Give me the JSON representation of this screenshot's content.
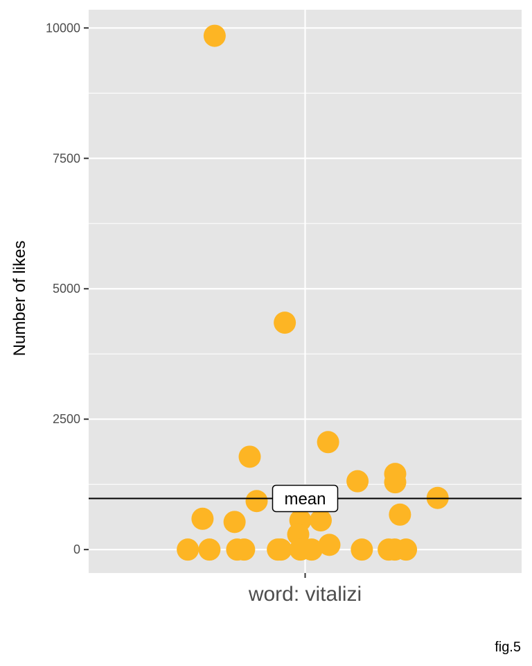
{
  "chart_data": {
    "type": "scatter",
    "title": "",
    "xlabel": "",
    "ylabel": "Number of likes",
    "ylim": [
      -450,
      10350
    ],
    "yticks": [
      0,
      2500,
      5000,
      7500,
      10000
    ],
    "ytick_labels": [
      "0",
      "2500",
      "5000",
      "7500",
      "10000"
    ],
    "categories": [
      "word: vitalizi"
    ],
    "grid": true,
    "legend": "none",
    "point_color": "#FDB524",
    "panel_color": "#E5E5E5",
    "grid_color": "#FFFFFF",
    "jitter_range": [
      -0.5,
      0.5
    ],
    "points": [
      {
        "jx": -0.209,
        "y": 9850
      },
      {
        "jx": -0.047,
        "y": 4350
      },
      {
        "jx": 0.053,
        "y": 2060
      },
      {
        "jx": -0.128,
        "y": 1780
      },
      {
        "jx": 0.208,
        "y": 1450
      },
      {
        "jx": 0.121,
        "y": 1310
      },
      {
        "jx": 0.208,
        "y": 1290
      },
      {
        "jx": 0.306,
        "y": 990
      },
      {
        "jx": -0.112,
        "y": 930
      },
      {
        "jx": 0.219,
        "y": 670
      },
      {
        "jx": -0.237,
        "y": 590
      },
      {
        "jx": 0.036,
        "y": 560
      },
      {
        "jx": -0.011,
        "y": 560
      },
      {
        "jx": -0.163,
        "y": 530
      },
      {
        "jx": -0.016,
        "y": 290
      },
      {
        "jx": 0.056,
        "y": 90
      },
      {
        "jx": -0.271,
        "y": 0
      },
      {
        "jx": -0.221,
        "y": 0
      },
      {
        "jx": -0.157,
        "y": 0
      },
      {
        "jx": -0.141,
        "y": 0
      },
      {
        "jx": -0.063,
        "y": 0
      },
      {
        "jx": -0.056,
        "y": 0
      },
      {
        "jx": -0.011,
        "y": 0
      },
      {
        "jx": 0.015,
        "y": 0
      },
      {
        "jx": 0.131,
        "y": 0
      },
      {
        "jx": 0.193,
        "y": 0
      },
      {
        "jx": 0.207,
        "y": 0
      },
      {
        "jx": 0.233,
        "y": 0
      }
    ],
    "mean_line": {
      "y": 980,
      "label": "mean"
    },
    "caption": "fig.5"
  }
}
